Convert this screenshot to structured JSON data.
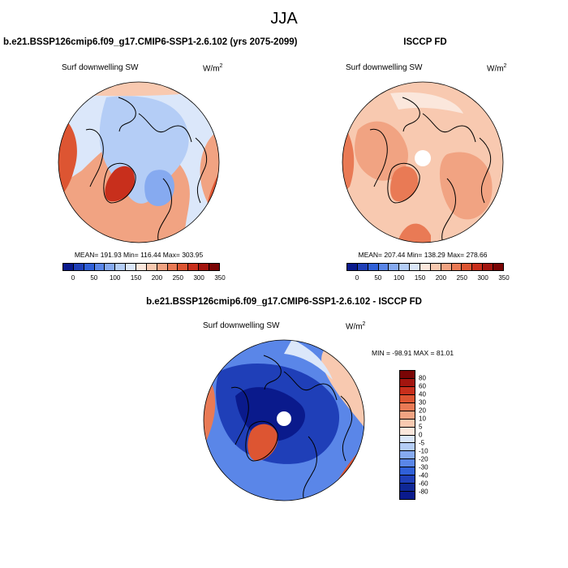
{
  "figure": {
    "title": "JJA"
  },
  "panels": [
    {
      "id": "model",
      "title": "b.e21.BSSP126cmip6.f09_g17.CMIP6-SSP1-2.6.102 (yrs 2075-2099)",
      "variable_label": "Surf downwelling SW",
      "units_base": "W/m",
      "units_exp": "2",
      "stats_text": "MEAN= 191.93   Min= 116.44   Max= 303.95",
      "colorbar_ticks": [
        "0",
        "50",
        "100",
        "150",
        "200",
        "250",
        "300",
        "350"
      ]
    },
    {
      "id": "obs",
      "title": "ISCCP FD",
      "variable_label": "Surf downwelling SW",
      "units_base": "W/m",
      "units_exp": "2",
      "stats_text": "MEAN= 207.44   Min= 138.29   Max= 278.66",
      "colorbar_ticks": [
        "0",
        "50",
        "100",
        "150",
        "200",
        "250",
        "300",
        "350"
      ]
    },
    {
      "id": "diff",
      "title": "b.e21.BSSP126cmip6.f09_g17.CMIP6-SSP1-2.6.102 - ISCCP FD",
      "variable_label": "Surf downwelling SW",
      "units_base": "W/m",
      "units_exp": "2",
      "stats_text": "MIN = -98.91  MAX =  81.01",
      "colorbar_ticks": [
        "80",
        "60",
        "40",
        "30",
        "20",
        "10",
        "5",
        "0",
        "-5",
        "-10",
        "-20",
        "-30",
        "-40",
        "-60",
        "-80"
      ]
    }
  ],
  "map_data": {
    "projection": "north polar stereographic",
    "season": "JJA",
    "variable": "Surf downwelling SW",
    "model_summary": {
      "mean": 191.93,
      "min": 116.44,
      "max": 303.95
    },
    "obs_summary": {
      "mean": 207.44,
      "min": 138.29,
      "max": 278.66
    },
    "diff_summary": {
      "min": -98.91,
      "max": 81.01
    },
    "abs_colors": [
      "#0a1a8c",
      "#1f3fb8",
      "#3060d8",
      "#5a86e8",
      "#86aaf0",
      "#b4cdf6",
      "#dbe7fa",
      "#fbe7dc",
      "#f8c9b0",
      "#f1a382",
      "#e97a55",
      "#dd5532",
      "#c82f1c",
      "#a3150f",
      "#7a0505"
    ],
    "diff_colors": [
      "#7a0505",
      "#a3150f",
      "#c82f1c",
      "#dd5532",
      "#e97a55",
      "#f1a382",
      "#f8c9b0",
      "#fbe7dc",
      "#dbe7fa",
      "#b4cdf6",
      "#86aaf0",
      "#5a86e8",
      "#3060d8",
      "#1f3fb8",
      "#0f2896",
      "#0a1a8c"
    ]
  }
}
